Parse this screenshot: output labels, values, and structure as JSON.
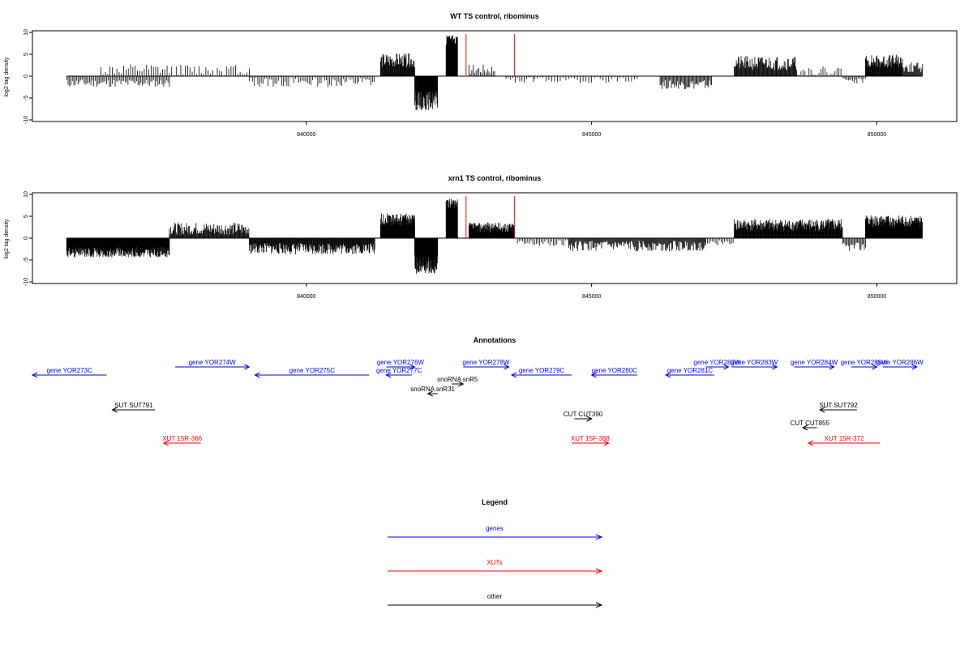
{
  "chart_data": [
    {
      "type": "bar",
      "title": "WT TS control, ribominus",
      "ylabel": "log2 tag density",
      "ylim": [
        -10,
        10
      ],
      "xlim": [
        835200,
        851400
      ],
      "x_ticks": [
        840000,
        845000,
        850000
      ],
      "y_ticks": [
        -10,
        -5,
        0,
        5,
        10
      ],
      "red_markers": [
        842800,
        843650
      ],
      "segments": [
        {
          "from": 835800,
          "to": 837600,
          "level": -1.6,
          "noise": 0.9,
          "step": 25,
          "seed": 11
        },
        {
          "from": 836400,
          "to": 839000,
          "level": 1.4,
          "noise": 1.3,
          "step": 40,
          "seed": 12
        },
        {
          "from": 839000,
          "to": 841200,
          "level": -1.3,
          "noise": 1.2,
          "step": 30,
          "seed": 13
        },
        {
          "from": 841300,
          "to": 841900,
          "level": 3.6,
          "noise": 1.6,
          "step": 10,
          "seed": 14
        },
        {
          "from": 841900,
          "to": 842300,
          "level": -5.6,
          "noise": 2.2,
          "step": 7,
          "seed": 15
        },
        {
          "from": 842450,
          "to": 842650,
          "level": 8.0,
          "noise": 1.4,
          "step": 4,
          "seed": 16
        },
        {
          "from": 842850,
          "to": 843300,
          "level": 1.6,
          "noise": 1.2,
          "step": 25,
          "seed": 17
        },
        {
          "from": 843500,
          "to": 844000,
          "level": -1.0,
          "noise": 0.8,
          "step": 40,
          "seed": 18
        },
        {
          "from": 844000,
          "to": 845800,
          "level": -0.8,
          "noise": 0.8,
          "step": 50,
          "seed": 19
        },
        {
          "from": 846200,
          "to": 847100,
          "level": -1.9,
          "noise": 1.1,
          "step": 18,
          "seed": 20
        },
        {
          "from": 847500,
          "to": 848600,
          "level": 3.0,
          "noise": 1.6,
          "step": 12,
          "seed": 21
        },
        {
          "from": 848600,
          "to": 849400,
          "level": 1.2,
          "noise": 1.0,
          "step": 35,
          "seed": 22
        },
        {
          "from": 849400,
          "to": 849800,
          "level": -1.0,
          "noise": 0.7,
          "step": 25,
          "seed": 23
        },
        {
          "from": 849800,
          "to": 850450,
          "level": 3.4,
          "noise": 1.5,
          "step": 9,
          "seed": 24
        },
        {
          "from": 850450,
          "to": 850800,
          "level": 2.0,
          "noise": 1.2,
          "step": 14,
          "seed": 25
        }
      ]
    },
    {
      "type": "bar",
      "title": "xrn1 TS control, ribominus",
      "ylabel": "log2 tag density",
      "ylim": [
        -10,
        10
      ],
      "xlim": [
        835200,
        851400
      ],
      "x_ticks": [
        840000,
        845000,
        850000
      ],
      "y_ticks": [
        -10,
        -5,
        0,
        5,
        10
      ],
      "red_markers": [
        842800,
        843650
      ],
      "segments": [
        {
          "from": 835800,
          "to": 837600,
          "level": -3.2,
          "noise": 1.2,
          "step": 6,
          "seed": 31
        },
        {
          "from": 837600,
          "to": 839000,
          "level": 2.2,
          "noise": 1.4,
          "step": 12,
          "seed": 32
        },
        {
          "from": 839000,
          "to": 841200,
          "level": -2.4,
          "noise": 1.3,
          "step": 10,
          "seed": 33
        },
        {
          "from": 841300,
          "to": 841900,
          "level": 4.2,
          "noise": 1.5,
          "step": 6,
          "seed": 34
        },
        {
          "from": 841900,
          "to": 842300,
          "level": -6.0,
          "noise": 2.2,
          "step": 5,
          "seed": 35
        },
        {
          "from": 842450,
          "to": 842650,
          "level": 7.6,
          "noise": 1.4,
          "step": 4,
          "seed": 36
        },
        {
          "from": 842850,
          "to": 843650,
          "level": 2.4,
          "noise": 1.2,
          "step": 6,
          "seed": 37
        },
        {
          "from": 843700,
          "to": 844600,
          "level": -1.2,
          "noise": 0.8,
          "step": 30,
          "seed": 38
        },
        {
          "from": 844600,
          "to": 847000,
          "level": -1.8,
          "noise": 1.2,
          "step": 14,
          "seed": 39
        },
        {
          "from": 847000,
          "to": 847500,
          "level": -1.0,
          "noise": 0.8,
          "step": 30,
          "seed": 40
        },
        {
          "from": 847500,
          "to": 849400,
          "level": 3.0,
          "noise": 1.4,
          "step": 8,
          "seed": 41
        },
        {
          "from": 849400,
          "to": 849800,
          "level": -2.0,
          "noise": 1.0,
          "step": 20,
          "seed": 42
        },
        {
          "from": 849800,
          "to": 850800,
          "level": 3.8,
          "noise": 1.4,
          "step": 6,
          "seed": 43
        }
      ]
    }
  ],
  "annotations": {
    "title": "Annotations",
    "items": [
      {
        "label": "gene YOR273C",
        "start": 835200,
        "end": 836500,
        "row": 0,
        "strand": "-",
        "color": "#0000ff"
      },
      {
        "label": "gene YOR274W",
        "start": 837700,
        "end": 839000,
        "row": 1,
        "strand": "+",
        "color": "#0000ff"
      },
      {
        "label": "gene YOR275C",
        "start": 839100,
        "end": 841100,
        "row": 0,
        "strand": "-",
        "color": "#0000ff"
      },
      {
        "label": "gene YOR276W",
        "start": 841400,
        "end": 841900,
        "row": 1,
        "strand": "+",
        "color": "#0000ff"
      },
      {
        "label": "gene YOR277C",
        "start": 841400,
        "end": 841850,
        "row": 0,
        "strand": "-",
        "color": "#0000ff"
      },
      {
        "label": "snoRNA snR5",
        "start": 842550,
        "end": 842750,
        "row": 2,
        "strand": "+",
        "color": "#000000"
      },
      {
        "label": "snoRNA snR31",
        "start": 842130,
        "end": 842300,
        "row": 3,
        "strand": "-",
        "color": "#000000"
      },
      {
        "label": "gene YOR278W",
        "start": 842750,
        "end": 843550,
        "row": 1,
        "strand": "+",
        "color": "#0000ff"
      },
      {
        "label": "gene YOR279C",
        "start": 843600,
        "end": 844650,
        "row": 0,
        "strand": "-",
        "color": "#0000ff"
      },
      {
        "label": "gene YOR280C",
        "start": 845000,
        "end": 845800,
        "row": 0,
        "strand": "-",
        "color": "#0000ff"
      },
      {
        "label": "gene YOR281C",
        "start": 846300,
        "end": 847150,
        "row": 0,
        "strand": "-",
        "color": "#0000ff"
      },
      {
        "label": "gene YOR282W",
        "start": 847000,
        "end": 847400,
        "row": 1,
        "strand": "+",
        "color": "#0000ff"
      },
      {
        "label": "gene YOR283W",
        "start": 847450,
        "end": 848250,
        "row": 1,
        "strand": "+",
        "color": "#0000ff"
      },
      {
        "label": "gene YOR284W",
        "start": 848550,
        "end": 849250,
        "row": 1,
        "strand": "+",
        "color": "#0000ff"
      },
      {
        "label": "gene YOR285W",
        "start": 849550,
        "end": 850000,
        "row": 1,
        "strand": "+",
        "color": "#0000ff"
      },
      {
        "label": "gene YOR286W",
        "start": 850100,
        "end": 850700,
        "row": 1,
        "strand": "+",
        "color": "#0000ff"
      },
      {
        "label": "SUT SUT791",
        "start": 836600,
        "end": 837350,
        "row": 4,
        "strand": "-",
        "color": "#000000"
      },
      {
        "label": "SUT SUT792",
        "start": 849000,
        "end": 849650,
        "row": 4,
        "strand": "-",
        "color": "#000000"
      },
      {
        "label": "CUT CUT390",
        "start": 844700,
        "end": 845000,
        "row": 5,
        "strand": "+",
        "color": "#000000"
      },
      {
        "label": "CUT CUT855",
        "start": 848700,
        "end": 848950,
        "row": 6,
        "strand": "-",
        "color": "#000000"
      },
      {
        "label": "XUT 15R-366",
        "start": 837500,
        "end": 838150,
        "row": 7,
        "strand": "-",
        "color": "#ff0000"
      },
      {
        "label": "XUT 15F-388",
        "start": 844650,
        "end": 845300,
        "row": 7,
        "strand": "+",
        "color": "#ff0000"
      },
      {
        "label": "XUT 15R-372",
        "start": 848800,
        "end": 850050,
        "row": 7,
        "strand": "-",
        "color": "#ff0000"
      }
    ]
  },
  "legend": {
    "title": "Legend",
    "entries": [
      {
        "label": "genes",
        "color": "#0000ff"
      },
      {
        "label": "XUTs",
        "color": "#ff0000"
      },
      {
        "label": "other",
        "color": "#000000"
      }
    ]
  }
}
